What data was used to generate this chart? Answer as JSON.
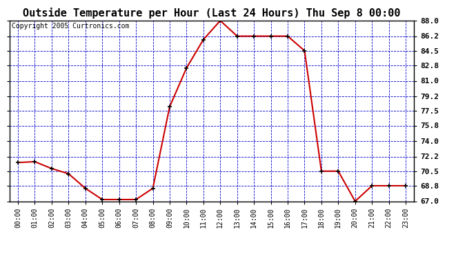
{
  "title": "Outside Temperature per Hour (Last 24 Hours) Thu Sep 8 00:00",
  "copyright": "Copyright 2005 Curtronics.com",
  "hours": [
    "00:00",
    "01:00",
    "02:00",
    "03:00",
    "04:00",
    "05:00",
    "06:00",
    "07:00",
    "08:00",
    "09:00",
    "10:00",
    "11:00",
    "12:00",
    "13:00",
    "14:00",
    "15:00",
    "16:00",
    "17:00",
    "18:00",
    "19:00",
    "20:00",
    "21:00",
    "22:00",
    "23:00"
  ],
  "temperatures": [
    71.5,
    71.6,
    70.8,
    70.2,
    68.5,
    67.2,
    67.2,
    67.2,
    68.5,
    78.0,
    82.5,
    85.8,
    88.0,
    86.2,
    86.2,
    86.2,
    86.2,
    84.5,
    70.5,
    70.5,
    67.0,
    68.8,
    68.8,
    68.8
  ],
  "ylim_min": 67.0,
  "ylim_max": 88.0,
  "yticks": [
    67.0,
    68.8,
    70.5,
    72.2,
    74.0,
    75.8,
    77.5,
    79.2,
    81.0,
    82.8,
    84.5,
    86.2,
    88.0
  ],
  "line_color": "#cc0000",
  "marker_color": "#000000",
  "bg_color": "#ffffff",
  "plot_bg_color": "#ffffff",
  "grid_color": "#0000cc",
  "title_fontsize": 11,
  "copyright_fontsize": 7
}
